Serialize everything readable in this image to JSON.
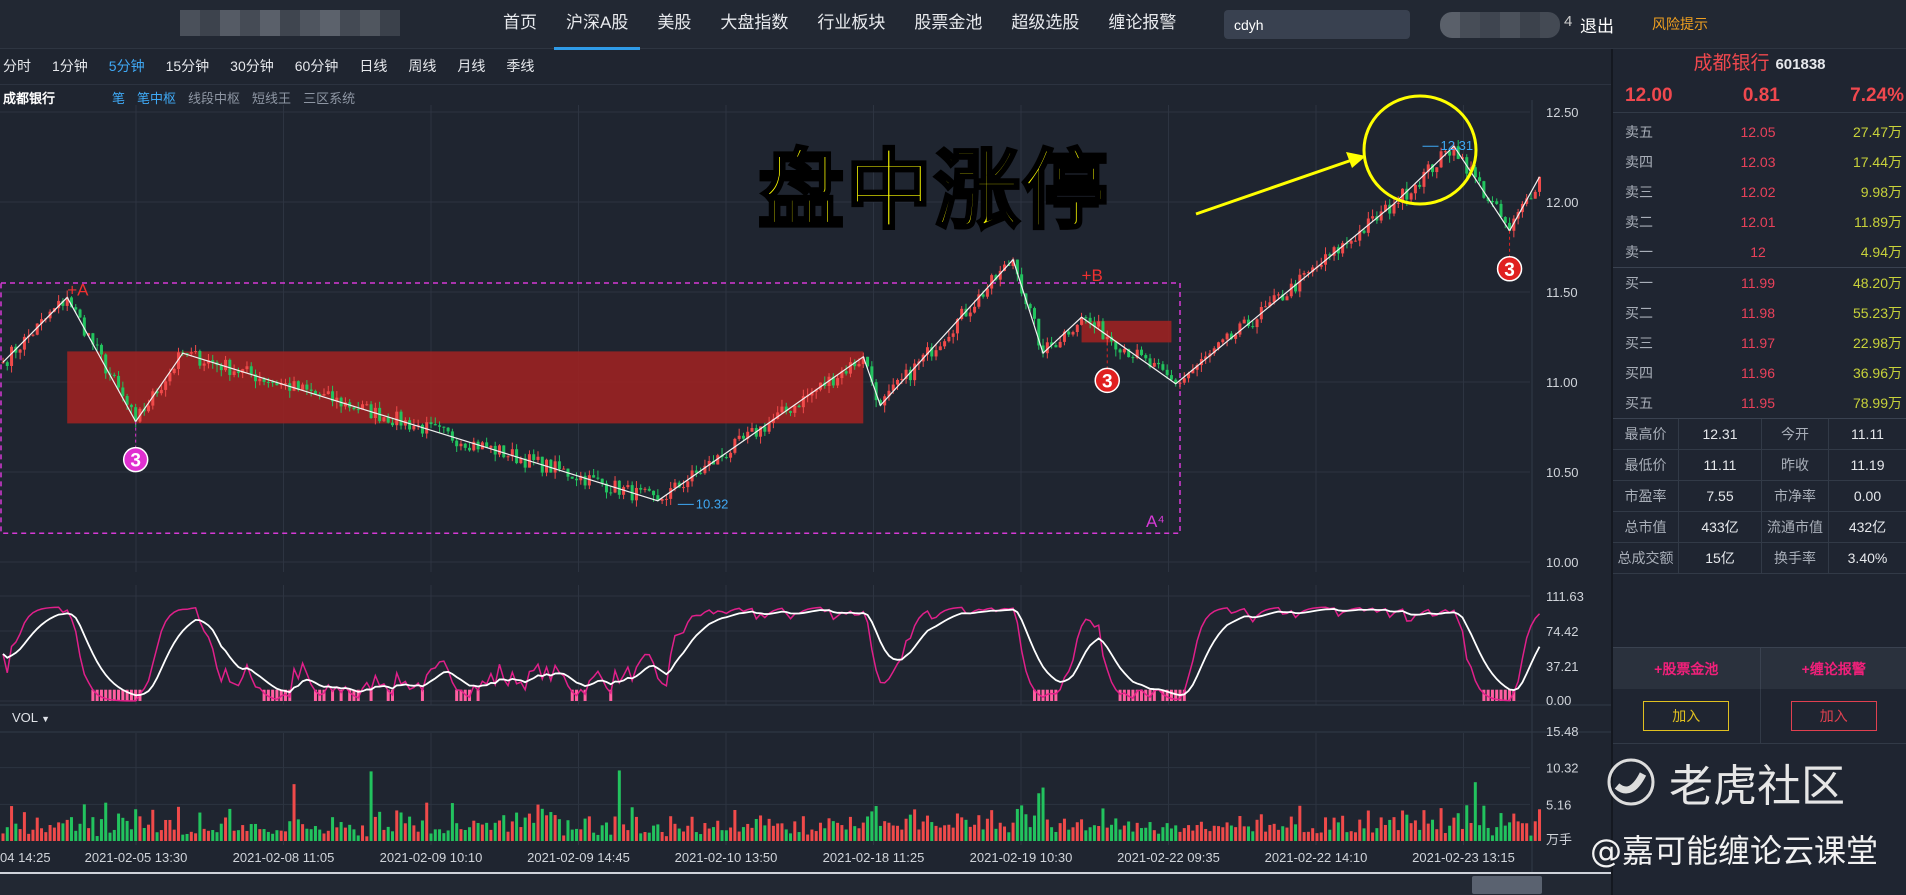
{
  "nav": {
    "items": [
      "首页",
      "沪深A股",
      "美股",
      "大盘指数",
      "行业板块",
      "股票金池",
      "超级选股",
      "缠论报警"
    ],
    "active": 1,
    "search_value": "cdyh",
    "user_fragment": "4",
    "logout": "退出",
    "risk": "风险提示"
  },
  "periods": {
    "items": [
      "分时",
      "1分钟",
      "5分钟",
      "15分钟",
      "30分钟",
      "60分钟",
      "日线",
      "周线",
      "月线",
      "季线"
    ],
    "active": 2
  },
  "subrow": {
    "stock": "成都银行",
    "items": [
      "笔",
      "笔中枢",
      "线段中枢",
      "短线王",
      "三区系统"
    ],
    "active": [
      0,
      1
    ]
  },
  "annotation": {
    "text": "盘中涨停",
    "color": "#ffff00"
  },
  "vol_label": "VOL",
  "colors": {
    "up": "#f04a4a",
    "down": "#22c35e",
    "zhongshu": "#9b2222",
    "box": "#d63ad6",
    "accent": "#2f9be8"
  },
  "chart_data": {
    "type": "candlestick",
    "price_ticks": [
      "12.50",
      "12.00",
      "11.50",
      "11.00",
      "10.50",
      "10.00"
    ],
    "ylim": [
      10.0,
      12.5
    ],
    "indicator_ticks": [
      "111.63",
      "74.42",
      "37.21",
      "0.00"
    ],
    "volume_ticks": [
      "15.48",
      "10.32",
      "5.16"
    ],
    "volume_unit": "万手",
    "x_labels": [
      "04 14:25",
      "2021-02-05 13:30",
      "2021-02-08 11:05",
      "2021-02-09 10:10",
      "2021-02-09 14:45",
      "2021-02-10 13:50",
      "2021-02-18 11:25",
      "2021-02-19 10:30",
      "2021-02-22 09:35",
      "2021-02-22 14:10",
      "2021-02-23 13:15"
    ],
    "bi_vertices": [
      [
        0,
        11.11
      ],
      [
        15,
        11.47
      ],
      [
        31,
        10.78
      ],
      [
        42,
        11.16
      ],
      [
        153,
        10.34
      ],
      [
        201,
        11.14
      ],
      [
        205,
        10.87
      ],
      [
        236,
        11.68
      ],
      [
        243,
        11.16
      ],
      [
        252,
        11.36
      ],
      [
        274,
        10.99
      ],
      [
        325,
        11.99
      ],
      [
        339,
        12.31
      ],
      [
        352,
        11.84
      ],
      [
        359,
        12.14
      ]
    ],
    "zhongshu": [
      {
        "from": 15,
        "to": 201,
        "high": 11.17,
        "low": 10.77
      },
      {
        "from": 252,
        "to": 273,
        "high": 11.34,
        "low": 11.22
      }
    ],
    "segment_box": {
      "from": 0,
      "to": 275,
      "high": 11.55,
      "low": 10.16,
      "label": "A⁴"
    },
    "labels": [
      {
        "text": "+A",
        "i": 15,
        "price": 11.47
      },
      {
        "text": "+B",
        "i": 252,
        "price": 11.55
      },
      {
        "text": "10.32",
        "i": 160,
        "price": 10.32
      },
      {
        "text": "12.31",
        "i": 334,
        "price": 12.31
      }
    ],
    "buy_points": [
      {
        "i": 31,
        "price": 10.78,
        "label": "3",
        "color": "#e030d0"
      },
      {
        "i": 258,
        "price": 11.22,
        "label": "3",
        "color": "#e02020"
      },
      {
        "i": 352,
        "price": 11.84,
        "label": "3",
        "color": "#e02020"
      }
    ]
  },
  "quote": {
    "name": "成都银行",
    "code": "601838",
    "price": "12.00",
    "change": "0.81",
    "pct": "7.24%"
  },
  "orderbook": {
    "sell": [
      [
        "卖五",
        "12.05",
        "27.47万"
      ],
      [
        "卖四",
        "12.03",
        "17.44万"
      ],
      [
        "卖三",
        "12.02",
        "9.98万"
      ],
      [
        "卖二",
        "12.01",
        "11.89万"
      ],
      [
        "卖一",
        "12",
        "4.94万"
      ]
    ],
    "buy": [
      [
        "买一",
        "11.99",
        "48.20万"
      ],
      [
        "买二",
        "11.98",
        "55.23万"
      ],
      [
        "买三",
        "11.97",
        "22.98万"
      ],
      [
        "买四",
        "11.96",
        "36.96万"
      ],
      [
        "买五",
        "11.95",
        "78.99万"
      ]
    ]
  },
  "stats": [
    [
      "最高价",
      "12.31",
      "今开",
      "11.11"
    ],
    [
      "最低价",
      "11.11",
      "昨收",
      "11.19"
    ],
    [
      "市盈率",
      "7.55",
      "市净率",
      "0.00"
    ],
    [
      "总市值",
      "433亿",
      "流通市值",
      "432亿"
    ],
    [
      "总成交额",
      "15亿",
      "换手率",
      "3.40%"
    ]
  ],
  "actions": {
    "pool": "+股票金池",
    "alert": "+缠论报警",
    "add": "加入"
  },
  "watermark": {
    "brand": "老虎社区",
    "author": "@嘉可能缠论云课堂"
  }
}
